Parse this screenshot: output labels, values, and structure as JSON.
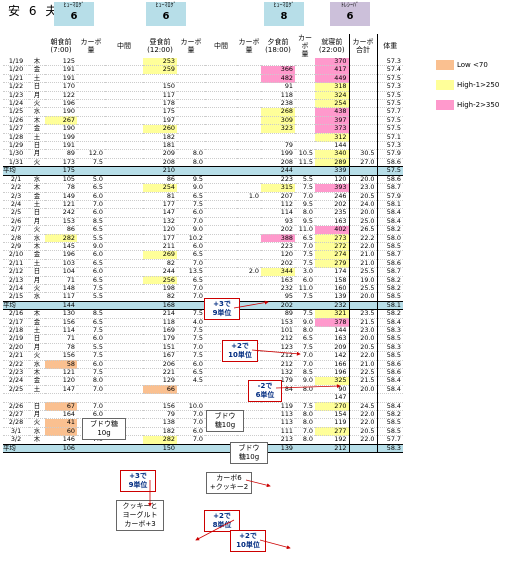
{
  "header": {
    "name1": "安",
    "name2": "6",
    "name3": "夫"
  },
  "insulins": [
    {
      "brand": "ﾋｭｰﾏﾛｸﾞ",
      "units": "6",
      "color": "#b7dee8"
    },
    {
      "brand": "ﾋｭｰﾏﾛｸﾞ",
      "units": "6",
      "color": "#b7dee8"
    },
    {
      "brand": "ﾋｭｰﾏﾛｸﾞ",
      "units": "8",
      "color": "#b7dee8"
    },
    {
      "brand": "ﾄﾚｼｰﾊﾞ",
      "units": "6",
      "color": "#ccc0da"
    }
  ],
  "columns": [
    "",
    "",
    "朝食前\n(7:00)",
    "カーボ\n量",
    "中間",
    "昼食前\n(12:00)",
    "カーボ\n量",
    "中間",
    "カーボ\n量",
    "夕食前\n(18:00)",
    "カーボ\n量",
    "就寝前\n(22:00)",
    "カーボ\n合計",
    "体重"
  ],
  "legend": [
    {
      "label": "Low <70",
      "color": "#fac090"
    },
    {
      "label": "High-1>250",
      "color": "#ffff99"
    },
    {
      "label": "High-2>350",
      "color": "#ff99cc"
    }
  ],
  "avg_label": "平均",
  "blocks": [
    {
      "rows": [
        [
          "1/19",
          "木",
          "125",
          "",
          "",
          "253",
          "",
          "",
          "",
          "",
          "",
          "370",
          "",
          "57.3"
        ],
        [
          "1/20",
          "金",
          "191",
          "",
          "",
          "259",
          "",
          "",
          "",
          "366",
          "",
          "417",
          "",
          "57.4"
        ],
        [
          "1/21",
          "土",
          "191",
          "",
          "",
          "",
          "",
          "",
          "",
          "482",
          "",
          "449",
          "",
          "57.5"
        ],
        [
          "1/22",
          "日",
          "170",
          "",
          "",
          "150",
          "",
          "",
          "",
          "91",
          "",
          "318",
          "",
          "57.3"
        ],
        [
          "1/23",
          "月",
          "122",
          "",
          "",
          "117",
          "",
          "",
          "",
          "118",
          "",
          "324",
          "",
          "57.5"
        ],
        [
          "1/24",
          "火",
          "196",
          "",
          "",
          "178",
          "",
          "",
          "",
          "238",
          "",
          "254",
          "",
          "57.5"
        ],
        [
          "1/25",
          "水",
          "190",
          "",
          "",
          "175",
          "",
          "",
          "",
          "268",
          "",
          "438",
          "",
          "57.7"
        ],
        [
          "1/26",
          "木",
          "267",
          "",
          "",
          "197",
          "",
          "",
          "",
          "309",
          "",
          "397",
          "",
          "57.5"
        ],
        [
          "1/27",
          "金",
          "190",
          "",
          "",
          "260",
          "",
          "",
          "",
          "323",
          "",
          "373",
          "",
          "57.5"
        ],
        [
          "1/28",
          "土",
          "199",
          "",
          "",
          "182",
          "",
          "",
          "",
          "",
          "",
          "312",
          "",
          "57.1"
        ],
        [
          "1/29",
          "日",
          "191",
          "",
          "",
          "181",
          "",
          "",
          "",
          "79",
          "",
          "144",
          "",
          "57.3"
        ],
        [
          "1/30",
          "月",
          "89",
          "12.0",
          "",
          "209",
          "8.0",
          "",
          "",
          "199",
          "10.5",
          "340",
          "30.5",
          "57.9"
        ],
        [
          "1/31",
          "火",
          "173",
          "7.5",
          "",
          "208",
          "8.0",
          "",
          "",
          "208",
          "11.5",
          "289",
          "27.0",
          "58.6"
        ]
      ],
      "avg": [
        "175",
        "",
        "",
        "210",
        "",
        "",
        "",
        "244",
        "",
        "339",
        "",
        "57.5"
      ]
    },
    {
      "rows": [
        [
          "2/1",
          "水",
          "105",
          "5.0",
          "",
          "86",
          "9.5",
          "",
          "",
          "223",
          "5.5",
          "120",
          "20.0",
          "58.6"
        ],
        [
          "2/2",
          "木",
          "78",
          "6.5",
          "",
          "254",
          "9.0",
          "",
          "",
          "315",
          "7.5",
          "393",
          "23.0",
          "58.7"
        ],
        [
          "2/3",
          "金",
          "149",
          "6.0",
          "",
          "81",
          "6.5",
          "",
          "1.0",
          "207",
          "7.0",
          "246",
          "20.5",
          "57.9"
        ],
        [
          "2/4",
          "土",
          "121",
          "7.0",
          "",
          "177",
          "7.5",
          "",
          "",
          "112",
          "9.5",
          "202",
          "24.0",
          "58.1"
        ],
        [
          "2/5",
          "日",
          "242",
          "6.0",
          "",
          "147",
          "6.0",
          "",
          "",
          "114",
          "8.0",
          "235",
          "20.0",
          "58.4"
        ],
        [
          "2/6",
          "月",
          "153",
          "8.5",
          "",
          "132",
          "7.0",
          "",
          "",
          "93",
          "9.5",
          "163",
          "25.0",
          "58.4"
        ],
        [
          "2/7",
          "火",
          "86",
          "6.5",
          "",
          "120",
          "9.0",
          "",
          "",
          "202",
          "11.0",
          "402",
          "26.5",
          "58.2"
        ],
        [
          "2/8",
          "水",
          "282",
          "5.5",
          "",
          "177",
          "10.2",
          "",
          "",
          "388",
          "6.5",
          "273",
          "22.2",
          "58.0"
        ],
        [
          "2/9",
          "木",
          "145",
          "9.0",
          "",
          "211",
          "6.0",
          "",
          "",
          "223",
          "7.0",
          "272",
          "22.0",
          "58.5"
        ],
        [
          "2/10",
          "金",
          "196",
          "6.0",
          "",
          "269",
          "6.5",
          "",
          "",
          "120",
          "7.5",
          "274",
          "21.0",
          "58.7"
        ],
        [
          "2/11",
          "土",
          "103",
          "6.5",
          "",
          "82",
          "7.0",
          "",
          "",
          "202",
          "7.5",
          "279",
          "21.0",
          "58.6"
        ],
        [
          "2/12",
          "日",
          "104",
          "6.0",
          "",
          "244",
          "13.5",
          "",
          "2.0",
          "344",
          "3.0",
          "174",
          "25.5",
          "58.7"
        ],
        [
          "2/13",
          "月",
          "71",
          "6.5",
          "",
          "256",
          "6.5",
          "",
          "",
          "163",
          "6.0",
          "158",
          "19.0",
          "58.2"
        ],
        [
          "2/14",
          "火",
          "148",
          "7.5",
          "",
          "198",
          "7.0",
          "",
          "",
          "232",
          "11.0",
          "160",
          "25.5",
          "58.2"
        ],
        [
          "2/15",
          "水",
          "117",
          "5.5",
          "",
          "82",
          "7.0",
          "",
          "",
          "95",
          "7.5",
          "139",
          "20.0",
          "58.5"
        ]
      ],
      "avg": [
        "144",
        "",
        "",
        "168",
        "",
        "",
        "",
        "202",
        "",
        "232",
        "",
        "58.1"
      ]
    },
    {
      "rows": [
        [
          "2/16",
          "木",
          "130",
          "8.5",
          "",
          "214",
          "7.5",
          "",
          "",
          "89",
          "7.5",
          "321",
          "23.5",
          "58.2"
        ],
        [
          "2/17",
          "金",
          "156",
          "6.5",
          "",
          "118",
          "4.0",
          "",
          "",
          "153",
          "9.0",
          "378",
          "21.5",
          "58.4"
        ],
        [
          "2/18",
          "土",
          "114",
          "7.5",
          "",
          "169",
          "7.5",
          "",
          "",
          "101",
          "8.0",
          "144",
          "23.0",
          "58.3"
        ],
        [
          "2/19",
          "日",
          "71",
          "6.0",
          "",
          "179",
          "7.5",
          "",
          "",
          "212",
          "6.5",
          "163",
          "20.0",
          "58.5"
        ],
        [
          "2/20",
          "月",
          "78",
          "5.5",
          "",
          "151",
          "7.0",
          "",
          "",
          "123",
          "7.5",
          "209",
          "20.5",
          "58.3"
        ],
        [
          "2/21",
          "火",
          "156",
          "7.5",
          "",
          "167",
          "7.5",
          "",
          "",
          "212",
          "7.0",
          "142",
          "22.0",
          "58.5"
        ],
        [
          "2/22",
          "水",
          "58",
          "6.0",
          "",
          "206",
          "6.0",
          "",
          "",
          "212",
          "7.0",
          "166",
          "21.0",
          "58.6"
        ],
        [
          "2/23",
          "木",
          "121",
          "7.5",
          "",
          "221",
          "6.5",
          "",
          "",
          "132",
          "8.5",
          "196",
          "22.5",
          "58.6"
        ],
        [
          "2/24",
          "金",
          "120",
          "8.0",
          "",
          "129",
          "4.5",
          "",
          "",
          "179",
          "9.0",
          "325",
          "21.5",
          "58.4"
        ],
        [
          "2/25",
          "土",
          "147",
          "7.0",
          "",
          "66",
          "",
          "",
          "1.0",
          "84",
          "8.0",
          "90",
          "20.0",
          "58.4"
        ],
        [
          "",
          "",
          "",
          "",
          "",
          "",
          "",
          "",
          "",
          "",
          "",
          "147",
          "",
          ""
        ],
        [
          "2/26",
          "日",
          "67",
          "7.0",
          "",
          "156",
          "10.0",
          "",
          "",
          "119",
          "7.5",
          "270",
          "24.5",
          "58.4"
        ],
        [
          "2/27",
          "月",
          "164",
          "6.0",
          "",
          "79",
          "7.0",
          "",
          "",
          "113",
          "8.0",
          "154",
          "22.0",
          "58.2"
        ],
        [
          "2/28",
          "火",
          "41",
          "4.5",
          "",
          "138",
          "7.0",
          "",
          "",
          "113",
          "8.0",
          "119",
          "22.0",
          "58.5"
        ],
        [
          "3/1",
          "水",
          "60",
          "5.5",
          "",
          "182",
          "6.0",
          "",
          "",
          "111",
          "7.0",
          "277",
          "20.5",
          "58.5"
        ],
        [
          "3/2",
          "木",
          "146",
          "7.0",
          "",
          "282",
          "7.0",
          "",
          "",
          "213",
          "8.0",
          "192",
          "22.0",
          "57.7"
        ]
      ],
      "avg": [
        "106",
        "",
        "",
        "150",
        "",
        "",
        "",
        "139",
        "",
        "212",
        "",
        "58.3"
      ]
    }
  ],
  "notes": [
    {
      "text": "+3で\n9単位",
      "color": "red"
    },
    {
      "text": "+2で\n10単位",
      "color": "red"
    },
    {
      "text": "-2で\n6単位",
      "color": "red"
    },
    {
      "text": "ブドウ糖\n10g",
      "color": "plain"
    },
    {
      "text": "ブドウ\n糖10g",
      "color": "plain"
    },
    {
      "text": "ブドウ\n糖10g",
      "color": "plain"
    },
    {
      "text": "+3で\n9単位",
      "color": "red"
    },
    {
      "text": "カーボ6\n+クッキー2",
      "color": "plain"
    },
    {
      "text": "クッキーと\nヨーグルト\nカーボ+3",
      "color": "plain"
    },
    {
      "text": "+2で\n8単位",
      "color": "red"
    },
    {
      "text": "+2で\n10単位",
      "color": "red"
    }
  ]
}
